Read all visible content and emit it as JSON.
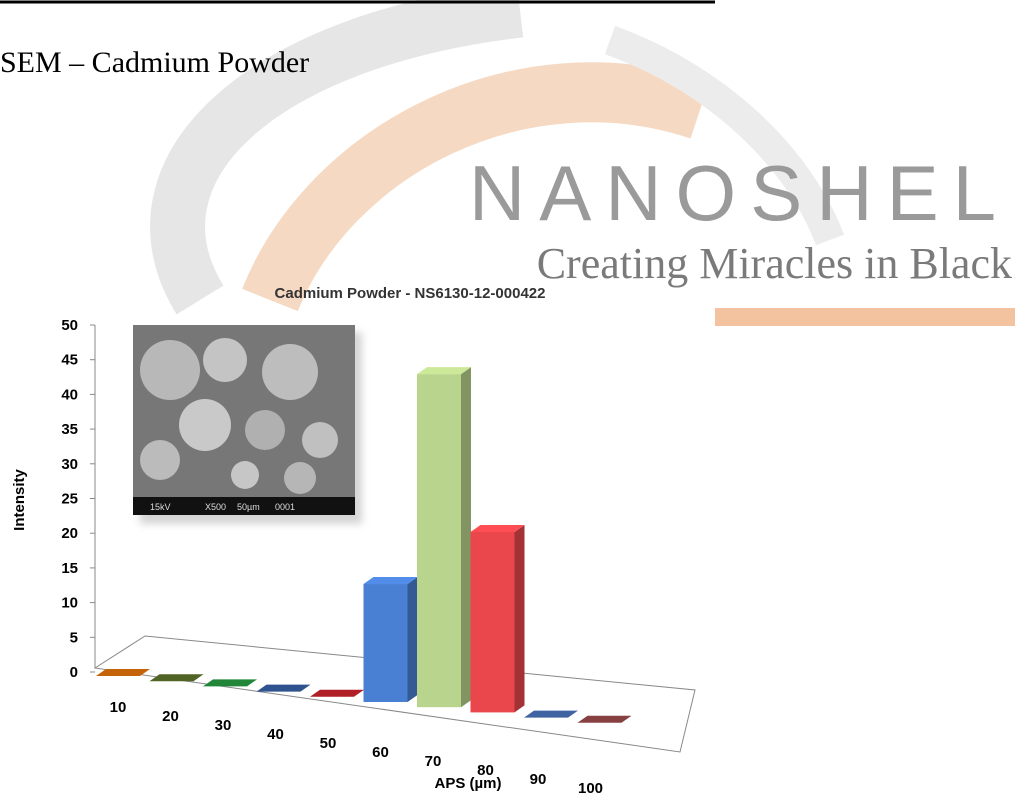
{
  "header": {
    "title": "SEM – Cadmium Powder"
  },
  "logo": {
    "name": "NANOSHEL",
    "tagline": "Creating Miracles in Black"
  },
  "inset": {
    "labels": [
      "15kV",
      "X500",
      "50µm",
      "0001"
    ]
  },
  "chart_data": {
    "type": "bar",
    "title": "Cadmium Powder - NS6130-12-000422",
    "x_label": "APS (µm)",
    "y_label": "Intensity",
    "categories": [
      "10",
      "20",
      "30",
      "40",
      "50",
      "60",
      "70",
      "80",
      "90",
      "100"
    ],
    "values": [
      0,
      0,
      0,
      0,
      0,
      17,
      48,
      26,
      0,
      0
    ],
    "colors": [
      "#b35a0a",
      "#4a5a22",
      "#1f7a34",
      "#2b4b82",
      "#a01c22",
      "#4a80d4",
      "#b9d48c",
      "#e9474b",
      "#3a5a92",
      "#7a3a3c"
    ],
    "ylim": [
      0,
      50
    ],
    "yticks": [
      0,
      5,
      10,
      15,
      20,
      25,
      30,
      35,
      40,
      45,
      50
    ]
  }
}
